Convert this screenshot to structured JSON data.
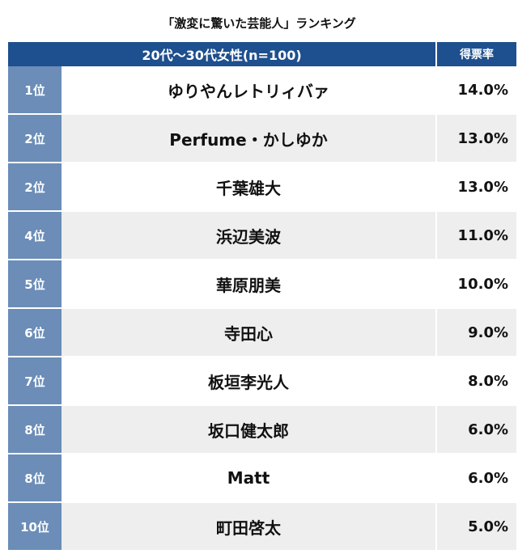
{
  "title": "「激変に驚いた芸能人」ランキング",
  "header": {
    "group": "20代〜30代女性(n=100)",
    "share_label": "得票率"
  },
  "chart_data": {
    "type": "table",
    "title": "「激変に驚いた芸能人」ランキング",
    "columns": [
      "",
      "20代〜30代女性(n=100)",
      "得票率"
    ],
    "rows": [
      {
        "rank": "1位",
        "name": "ゆりやんレトリィバァ",
        "share": "14.0%"
      },
      {
        "rank": "2位",
        "name": "Perfume・かしゆか",
        "share": "13.0%"
      },
      {
        "rank": "2位",
        "name": "千葉雄大",
        "share": "13.0%"
      },
      {
        "rank": "4位",
        "name": "浜辺美波",
        "share": "11.0%"
      },
      {
        "rank": "5位",
        "name": "華原朋美",
        "share": "10.0%"
      },
      {
        "rank": "6位",
        "name": "寺田心",
        "share": "9.0%"
      },
      {
        "rank": "7位",
        "name": "板垣李光人",
        "share": "8.0%"
      },
      {
        "rank": "8位",
        "name": "坂口健太郎",
        "share": "6.0%"
      },
      {
        "rank": "8位",
        "name": "Matt",
        "share": "6.0%"
      },
      {
        "rank": "10位",
        "name": "町田啓太",
        "share": "5.0%"
      }
    ],
    "values": [
      14.0,
      13.0,
      13.0,
      11.0,
      10.0,
      9.0,
      8.0,
      6.0,
      6.0,
      5.0
    ],
    "unit": "%"
  },
  "colors": {
    "header_bg": "#1e4f8e",
    "rank_bg": "#6b8db7",
    "row_alt_bg": "#eeeeee"
  }
}
